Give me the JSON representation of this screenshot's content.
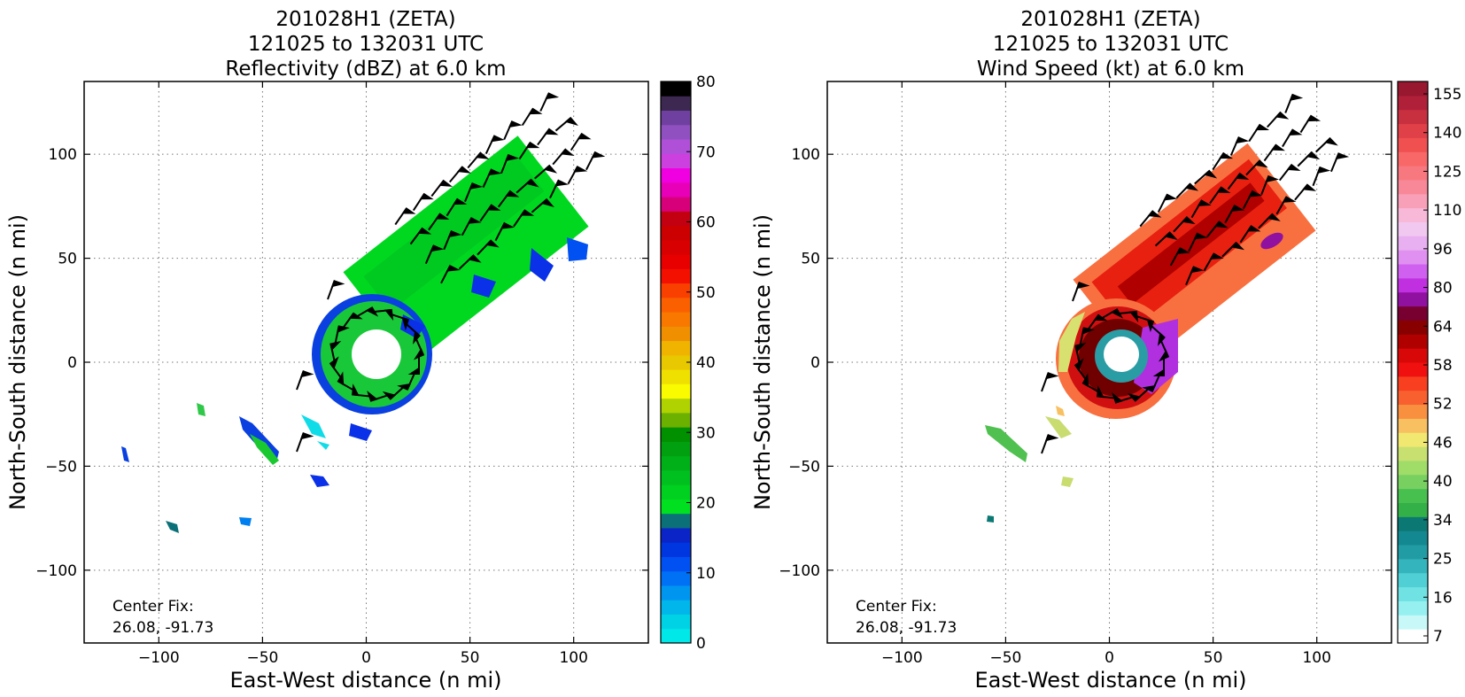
{
  "chart_data": [
    {
      "type": "heatmap",
      "title_lines": [
        "201028H1 (ZETA)",
        "121025 to 132031 UTC",
        "Reflectivity (dBZ) at 6.0 km"
      ],
      "xlabel": "East-West distance (n mi)",
      "ylabel": "North-South distance (n mi)",
      "xlim": [
        -136,
        136
      ],
      "ylim": [
        -135,
        135
      ],
      "xticks": [
        -100,
        -50,
        0,
        50,
        100
      ],
      "yticks": [
        -100,
        -50,
        0,
        50,
        100
      ],
      "grid": true,
      "center_fix_label": "Center Fix:",
      "center_fix_value": "26.08, -91.73",
      "colorbar": {
        "min": 0,
        "max": 80,
        "tick_values": [
          0,
          10,
          20,
          30,
          40,
          50,
          60,
          70,
          80
        ],
        "tick_labels": [
          "0",
          "10",
          "20",
          "30",
          "40",
          "50",
          "60",
          "70",
          "80"
        ],
        "colors": [
          "#00e8e8",
          "#00d2e6",
          "#00b6ea",
          "#0096f0",
          "#0070f5",
          "#0050f2",
          "#0036e0",
          "#0a24c8",
          "#0c7078",
          "#00e020",
          "#00d020",
          "#00c020",
          "#00b018",
          "#00a010",
          "#009000",
          "#6cb000",
          "#b0d200",
          "#fbfb00",
          "#f0e000",
          "#e8c800",
          "#f0b400",
          "#f09000",
          "#f87800",
          "#fa6000",
          "#fa4000",
          "#f41000",
          "#e80000",
          "#d80000",
          "#cc0000",
          "#c20012",
          "#d8007a",
          "#e800b8",
          "#f000e0",
          "#cc40e0",
          "#b050d8",
          "#9050c0",
          "#7040a0",
          "#3c2850",
          "#000000"
        ]
      }
    },
    {
      "type": "heatmap",
      "title_lines": [
        "201028H1 (ZETA)",
        "121025 to 132031 UTC",
        "Wind Speed (kt) at 6.0 km"
      ],
      "xlabel": "East-West distance (n mi)",
      "ylabel": "North-South distance (n mi)",
      "xlim": [
        -136,
        136
      ],
      "ylim": [
        -135,
        135
      ],
      "xticks": [
        -100,
        -50,
        0,
        50,
        100
      ],
      "yticks": [
        -100,
        -50,
        0,
        50,
        100
      ],
      "grid": true,
      "center_fix_label": "Center Fix:",
      "center_fix_value": "26.08, -91.73",
      "colorbar": {
        "tick_labels": [
          "7",
          "16",
          "25",
          "34",
          "40",
          "46",
          "52",
          "58",
          "64",
          "80",
          "96",
          "110",
          "125",
          "140",
          "155"
        ],
        "colors": [
          "#ffffff",
          "#c8f8f8",
          "#96f0f0",
          "#70e2e4",
          "#50d0d4",
          "#34b4bc",
          "#229ca4",
          "#148890",
          "#0c7874",
          "#34b048",
          "#48c050",
          "#78d060",
          "#a0dc68",
          "#c8e070",
          "#f0e870",
          "#f8c060",
          "#f89040",
          "#f86030",
          "#f84020",
          "#f01010",
          "#d80808",
          "#b00000",
          "#880000",
          "#780030",
          "#9010a0",
          "#c030e0",
          "#d060f0",
          "#e090f0",
          "#e8b0f0",
          "#f0c8f0",
          "#f8b8d8",
          "#f8a0b8",
          "#f88898",
          "#f87880",
          "#f86868",
          "#f05050",
          "#e04048",
          "#c83040",
          "#b02038",
          "#981830"
        ]
      }
    }
  ]
}
